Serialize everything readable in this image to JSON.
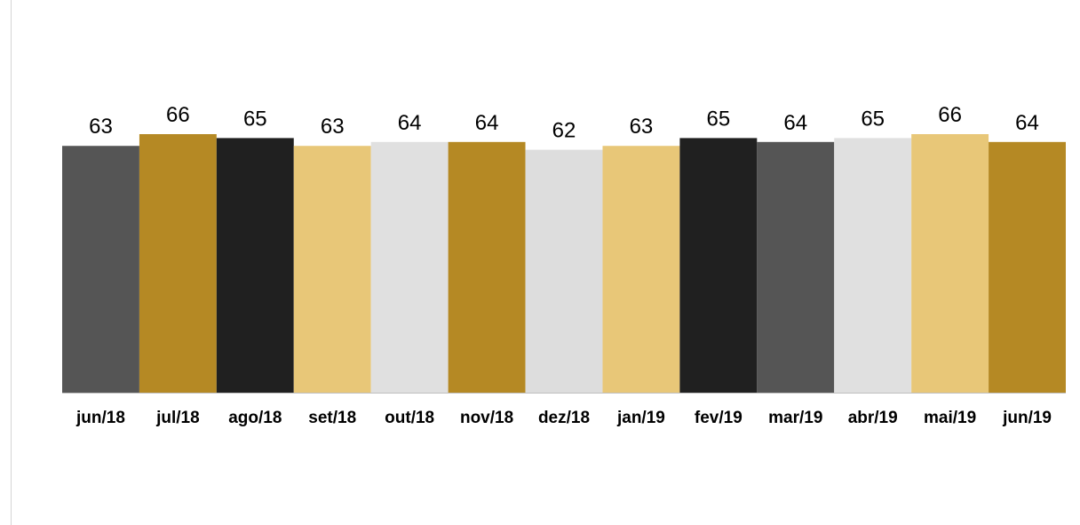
{
  "chart_data": {
    "type": "bar",
    "title": "",
    "xlabel": "",
    "ylabel": "",
    "categories": [
      "jun/18",
      "jul/18",
      "ago/18",
      "set/18",
      "out/18",
      "nov/18",
      "dez/18",
      "jan/19",
      "fev/19",
      "mar/19",
      "abr/19",
      "mai/19",
      "jun/19"
    ],
    "values": [
      63,
      66,
      65,
      63,
      64,
      64,
      62,
      63,
      65,
      64,
      65,
      66,
      64
    ],
    "colors": [
      "#555555",
      "#b58924",
      "#202020",
      "#e8c778",
      "#e0e0e0",
      "#b58924",
      "#dddddd",
      "#e8c778",
      "#202020",
      "#555555",
      "#e0e0e0",
      "#e8c778",
      "#b58924"
    ],
    "ylim": [
      0,
      66
    ],
    "grid": false,
    "data_labels": true,
    "legend": "none"
  }
}
